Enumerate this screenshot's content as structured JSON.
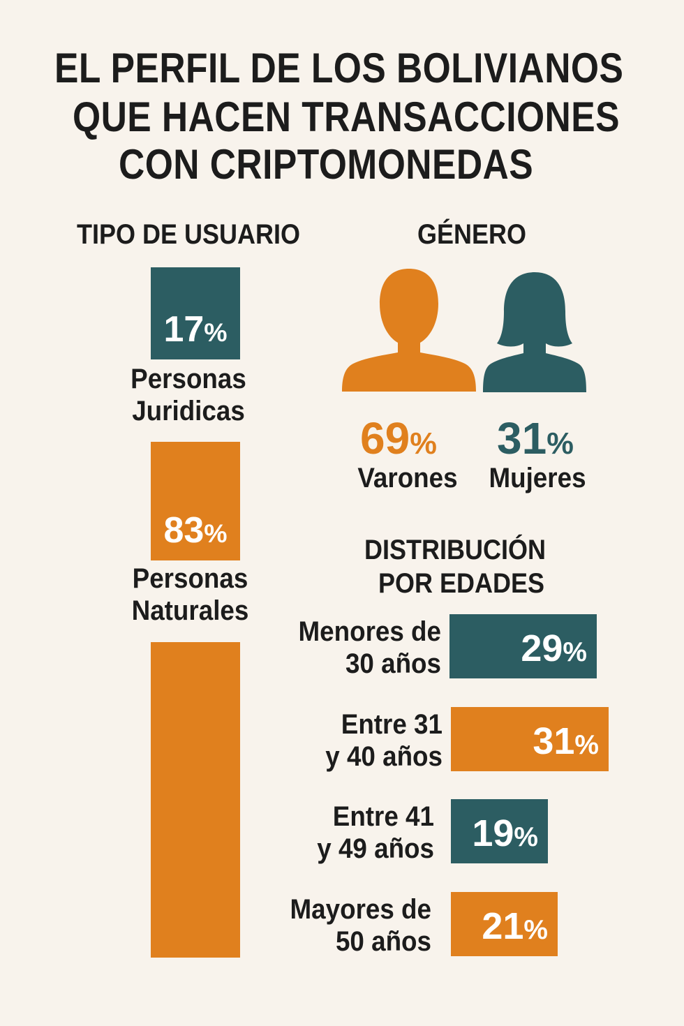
{
  "title": [
    "EL PERFIL DE LOS BOLIVIANOS",
    "QUE HACEN TRANSACCIONES",
    "CON CRIPTOMONEDAS"
  ],
  "colors": {
    "teal": "#2c5d62",
    "orange": "#e0801e",
    "background": "#f8f3ec"
  },
  "chart_data": [
    {
      "type": "bar",
      "title": "TIPO DE USUARIO",
      "categories": [
        "Personas Juridicas",
        "Personas Naturales"
      ],
      "category_lines": [
        [
          "Personas",
          "Juridicas"
        ],
        [
          "Personas",
          "Naturales"
        ]
      ],
      "values": [
        17,
        83
      ],
      "value_labels": [
        "17",
        "83"
      ],
      "unit": "%",
      "colors": [
        "#2c5d62",
        "#e0801e"
      ]
    },
    {
      "type": "pie",
      "title": "GÉNERO",
      "categories": [
        "Varones",
        "Mujeres"
      ],
      "values": [
        69,
        31
      ],
      "value_labels": [
        "69",
        "31"
      ],
      "unit": "%",
      "icons": [
        "man-silhouette-icon",
        "woman-silhouette-icon"
      ],
      "colors": [
        "#e0801e",
        "#2c5d62"
      ]
    },
    {
      "type": "bar",
      "title_lines": [
        "DISTRIBUCIÓN",
        "POR EDADES"
      ],
      "categories": [
        "Menores de 30 años",
        "Entre 31 y 40 años",
        "Entre 41 y 49 años",
        "Mayores de 50 años"
      ],
      "category_lines": [
        [
          "Menores de",
          "30 años"
        ],
        [
          "Entre 31",
          "y 40 años"
        ],
        [
          "Entre 41",
          "y 49 años"
        ],
        [
          "Mayores de",
          "50 años"
        ]
      ],
      "values": [
        29,
        31,
        19,
        21
      ],
      "value_labels": [
        "29",
        "31",
        "19",
        "21"
      ],
      "unit": "%",
      "colors": [
        "#2c5d62",
        "#e0801e",
        "#2c5d62",
        "#e0801e"
      ]
    }
  ]
}
